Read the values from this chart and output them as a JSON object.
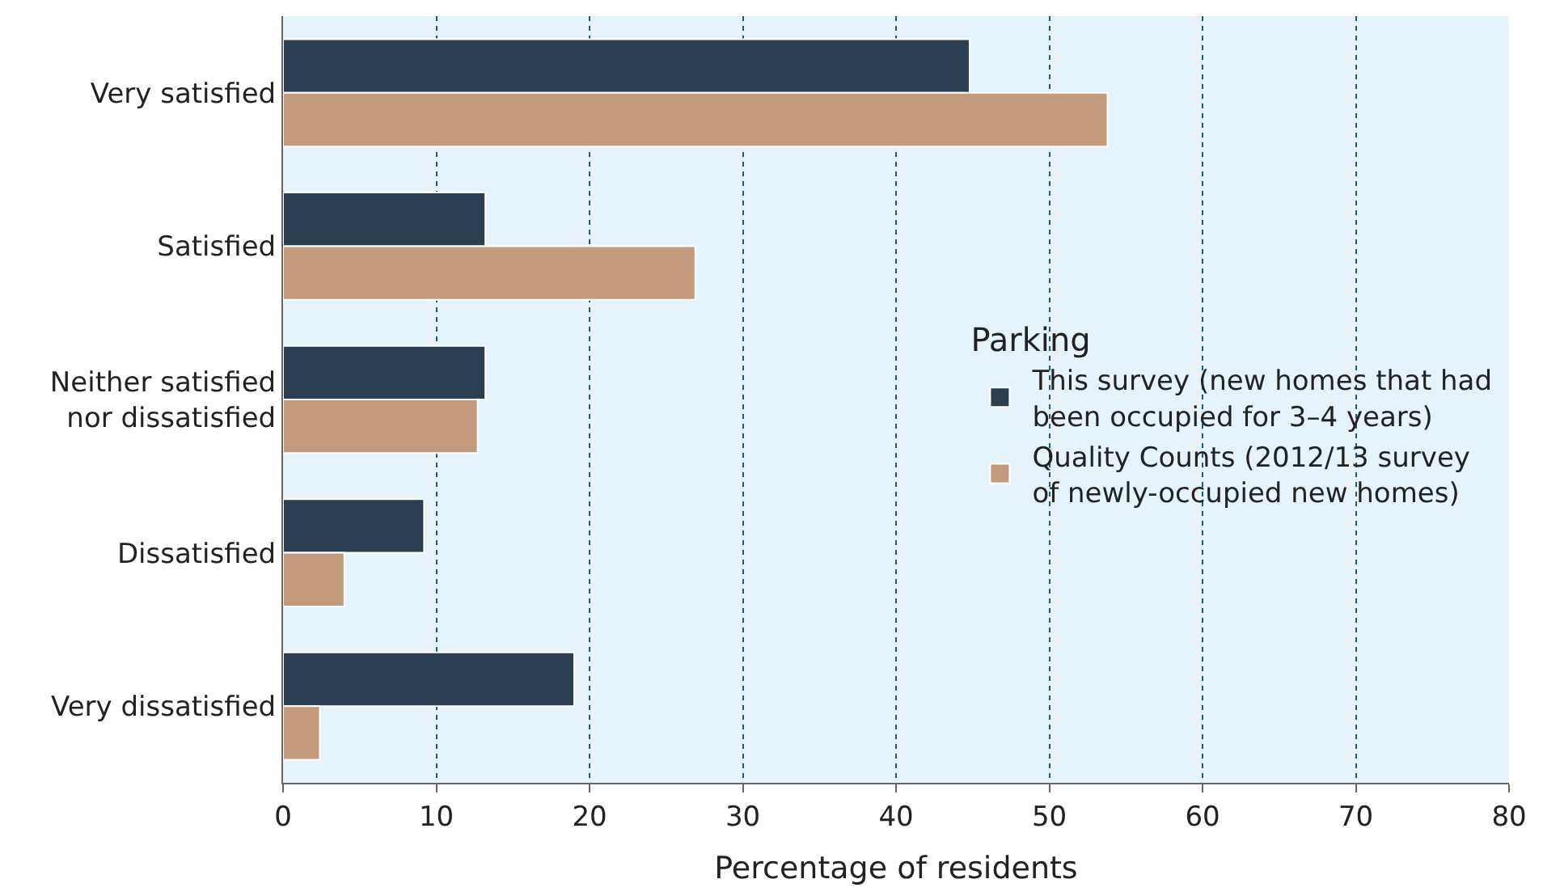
{
  "chart_data": {
    "type": "bar",
    "orientation": "horizontal",
    "categories": [
      "Very satisfied",
      "Satisfied",
      "Neither satisfied\nnor dissatisfied",
      "Dissatisfied",
      "Very dissatisfied"
    ],
    "series": [
      {
        "name": "This survey (new homes that had\nbeen occupied for 3–4 years)",
        "color": "#2b3f52",
        "values": [
          44.8,
          13.2,
          13.2,
          9.2,
          19.0
        ]
      },
      {
        "name": "Quality Counts (2012/13 survey\nof newly-occupied new homes)",
        "color": "#c49a7c",
        "values": [
          53.8,
          26.9,
          12.7,
          4.0,
          2.4
        ]
      }
    ],
    "xlabel": "Percentage of residents",
    "legend_title": "Parking",
    "xlim": [
      0,
      80
    ],
    "xticks": [
      0,
      10,
      20,
      30,
      40,
      50,
      60,
      70,
      80
    ],
    "grid": "x",
    "legend": "right"
  }
}
